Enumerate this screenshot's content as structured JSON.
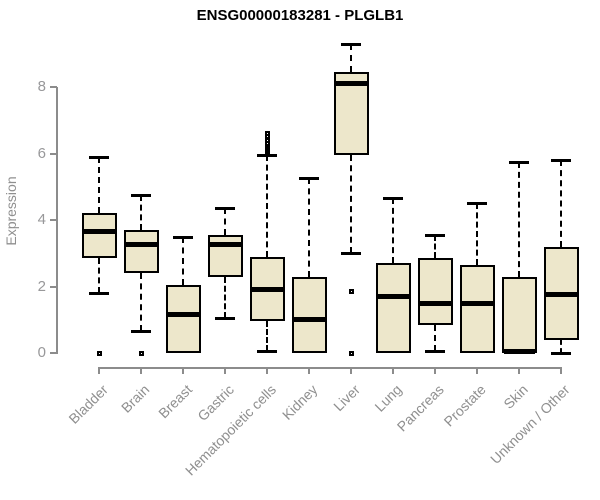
{
  "chart_data": {
    "type": "boxplot",
    "title": "ENSG00000183281 - PLGLB1",
    "ylabel": "Expression",
    "xlabel": "",
    "y_ticks": [
      0,
      2,
      4,
      6,
      8
    ],
    "ylim": [
      0,
      9.6
    ],
    "grid": false,
    "legend": "none",
    "categories": [
      "Bladder",
      "Brain",
      "Breast",
      "Gastric",
      "Hematopoietic cells",
      "Kidney",
      "Liver",
      "Lung",
      "Pancreas",
      "Prostate",
      "Skin",
      "Unknown / Other"
    ],
    "series": [
      {
        "category": "Bladder",
        "whisker_low": 1.8,
        "q1": 2.85,
        "median": 3.65,
        "q3": 4.2,
        "whisker_high": 5.9,
        "outliers": [
          0
        ]
      },
      {
        "category": "Brain",
        "whisker_low": 0.65,
        "q1": 2.4,
        "median": 3.25,
        "q3": 3.7,
        "whisker_high": 4.75,
        "outliers": [
          0
        ]
      },
      {
        "category": "Breast",
        "whisker_low": 0,
        "q1": 0,
        "median": 1.15,
        "q3": 2.05,
        "whisker_high": 3.5,
        "outliers": []
      },
      {
        "category": "Gastric",
        "whisker_low": 1.05,
        "q1": 2.3,
        "median": 3.25,
        "q3": 3.55,
        "whisker_high": 4.35,
        "outliers": []
      },
      {
        "category": "Hematopoietic cells",
        "whisker_low": 0.05,
        "q1": 0.95,
        "median": 1.9,
        "q3": 2.9,
        "whisker_high": 5.95,
        "outliers": [
          6.05,
          6.1,
          6.15,
          6.2,
          6.25,
          6.3,
          6.4,
          6.5,
          6.6
        ]
      },
      {
        "category": "Kidney",
        "whisker_low": 0,
        "q1": 0,
        "median": 1.0,
        "q3": 2.3,
        "whisker_high": 5.25,
        "outliers": []
      },
      {
        "category": "Liver",
        "whisker_low": 3.0,
        "q1": 5.95,
        "median": 8.1,
        "q3": 8.45,
        "whisker_high": 9.3,
        "outliers": [
          1.85,
          0
        ]
      },
      {
        "category": "Lung",
        "whisker_low": 0,
        "q1": 0,
        "median": 1.7,
        "q3": 2.7,
        "whisker_high": 4.65,
        "outliers": []
      },
      {
        "category": "Pancreas",
        "whisker_low": 0.05,
        "q1": 0.85,
        "median": 1.5,
        "q3": 2.85,
        "whisker_high": 3.55,
        "outliers": []
      },
      {
        "category": "Prostate",
        "whisker_low": 0,
        "q1": 0,
        "median": 1.5,
        "q3": 2.65,
        "whisker_high": 4.5,
        "outliers": []
      },
      {
        "category": "Skin",
        "whisker_low": 0,
        "q1": 0,
        "median": 0.05,
        "q3": 2.3,
        "whisker_high": 5.75,
        "outliers": []
      },
      {
        "category": "Unknown / Other",
        "whisker_low": 0,
        "q1": 0.4,
        "median": 1.75,
        "q3": 3.2,
        "whisker_high": 5.8,
        "outliers": []
      }
    ],
    "colors": {
      "box_fill": "#ede7cb",
      "box_border": "#000000",
      "median": "#000000",
      "axis": "#8c8c8c",
      "tick_text": "#98989a",
      "title_text": "#000000"
    }
  }
}
